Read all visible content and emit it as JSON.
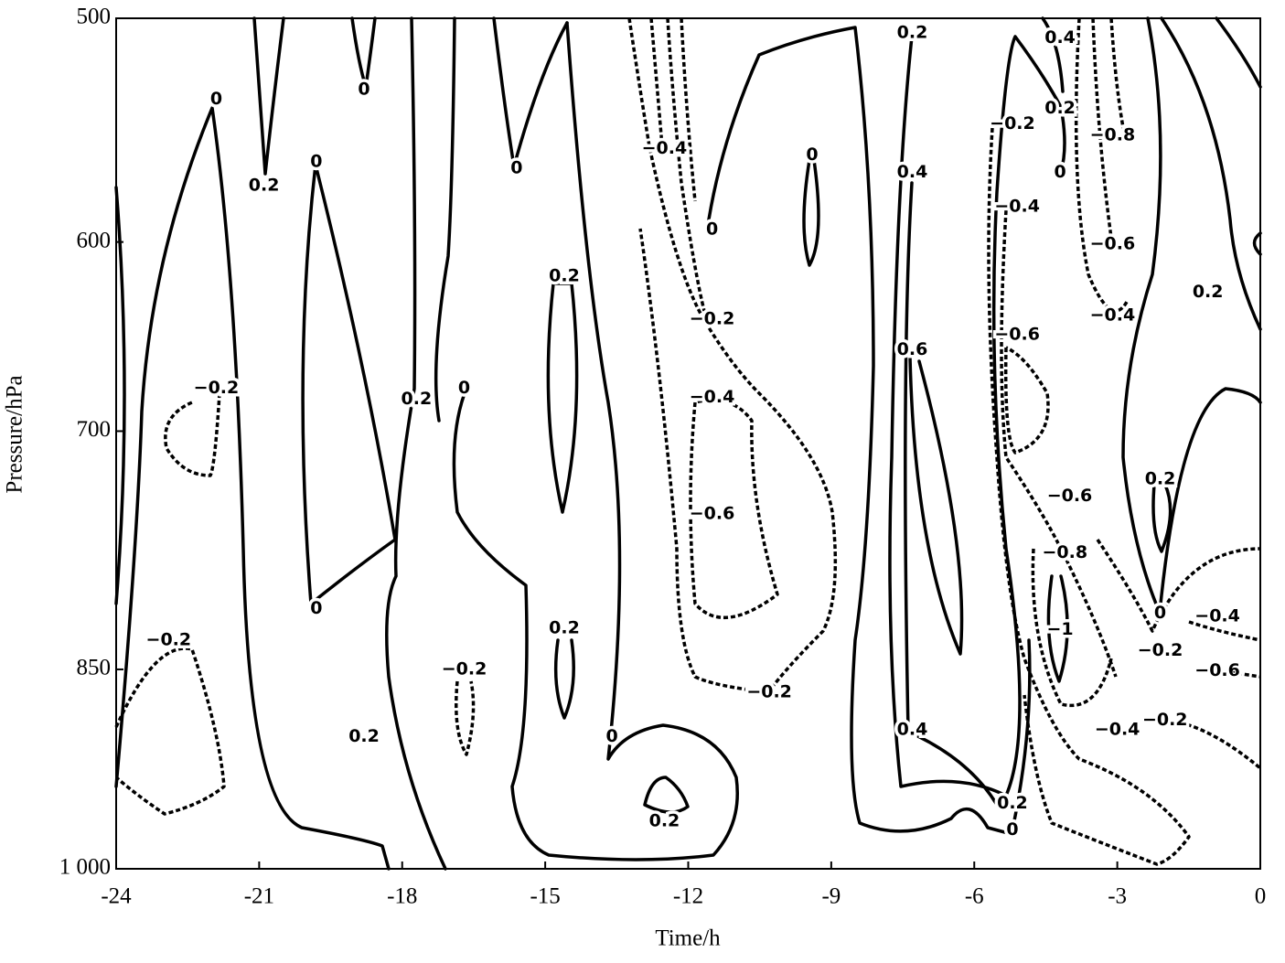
{
  "chart_data": {
    "type": "contour",
    "x_label": "Time/h",
    "y_label": "Pressure/hPa",
    "xlim": [
      -24,
      0
    ],
    "xticks": [
      -24,
      -21,
      -18,
      -15,
      -12,
      -9,
      -6,
      -3,
      0
    ],
    "ylim": [
      1000,
      500
    ],
    "ylog": true,
    "y_inverted": true,
    "yticks": [
      500,
      600,
      700,
      850,
      {
        "value": 1000,
        "label": "1 000"
      }
    ],
    "color": "#000000",
    "contour_labels": {
      "x": [
        -7.3,
        -4.2,
        -18.8,
        -21.9,
        -4.2,
        -5.2,
        -3.1,
        -12.5,
        -9.4,
        -15.6,
        -19.8,
        -4.2,
        -7.3,
        -20.9,
        -5.1,
        -11.5,
        -3.1,
        -1.1,
        -14.6,
        -3.1,
        -11.5,
        -5.1,
        -7.3,
        -21.9,
        -17.7,
        -16.7,
        -11.5,
        -2.1,
        -4.0,
        -11.5,
        -4.1,
        -19.8,
        -2.1,
        -0.9,
        -4.2,
        -14.6,
        -22.9,
        -2.1,
        -16.7,
        -0.9,
        -10.3,
        -2.0,
        -7.3,
        -3.0,
        -18.8,
        -13.6,
        -5.2,
        -12.5,
        -5.2
      ],
      "y": [
        506,
        508,
        530,
        534,
        538,
        545,
        550,
        556,
        559,
        565,
        562,
        567,
        567,
        573,
        583,
        594,
        601,
        625,
        617,
        637,
        639,
        647,
        655,
        676,
        682,
        676,
        681,
        728,
        738,
        749,
        773,
        809,
        812,
        814,
        823,
        822,
        830,
        837,
        850,
        851,
        866,
        886,
        893,
        893,
        898,
        898,
        948,
        962,
        969
      ],
      "values": [
        0.2,
        0.4,
        0,
        0,
        0.2,
        -0.2,
        -0.8,
        -0.4,
        0,
        0,
        0,
        0,
        0.4,
        0.2,
        -0.4,
        0,
        -0.6,
        0.2,
        0.2,
        -0.4,
        -0.2,
        -0.6,
        0.6,
        -0.2,
        0.2,
        0,
        -0.4,
        0.2,
        -0.6,
        -0.6,
        -0.8,
        0,
        0,
        -0.4,
        -1,
        0.2,
        -0.2,
        -0.2,
        -0.2,
        -0.6,
        -0.2,
        -0.2,
        0.4,
        -0.4,
        0.2,
        0,
        0.2,
        0.2,
        0
      ],
      "value_labels": [
        "0.2",
        "0.4",
        "0",
        "0",
        "0.2",
        "−0.2",
        "−0.8",
        "−0.4",
        "0",
        "0",
        "0",
        "0",
        "0.4",
        "0.2",
        "−0.4",
        "0",
        "−0.6",
        "0.2",
        "0.2",
        "−0.4",
        "−0.2",
        "−0.6",
        "0.6",
        "−0.2",
        "0.2",
        "0",
        "−0.4",
        "0.2",
        "−0.6",
        "−0.6",
        "−0.8",
        "0",
        "0",
        "−0.4",
        "−1",
        "0.2",
        "−0.2",
        "−0.2",
        "−0.2",
        "−0.6",
        "−0.2",
        "−0.2",
        "0.4",
        "−0.4",
        "0.2",
        "0",
        "0.2",
        "0.2",
        "0"
      ]
    }
  }
}
